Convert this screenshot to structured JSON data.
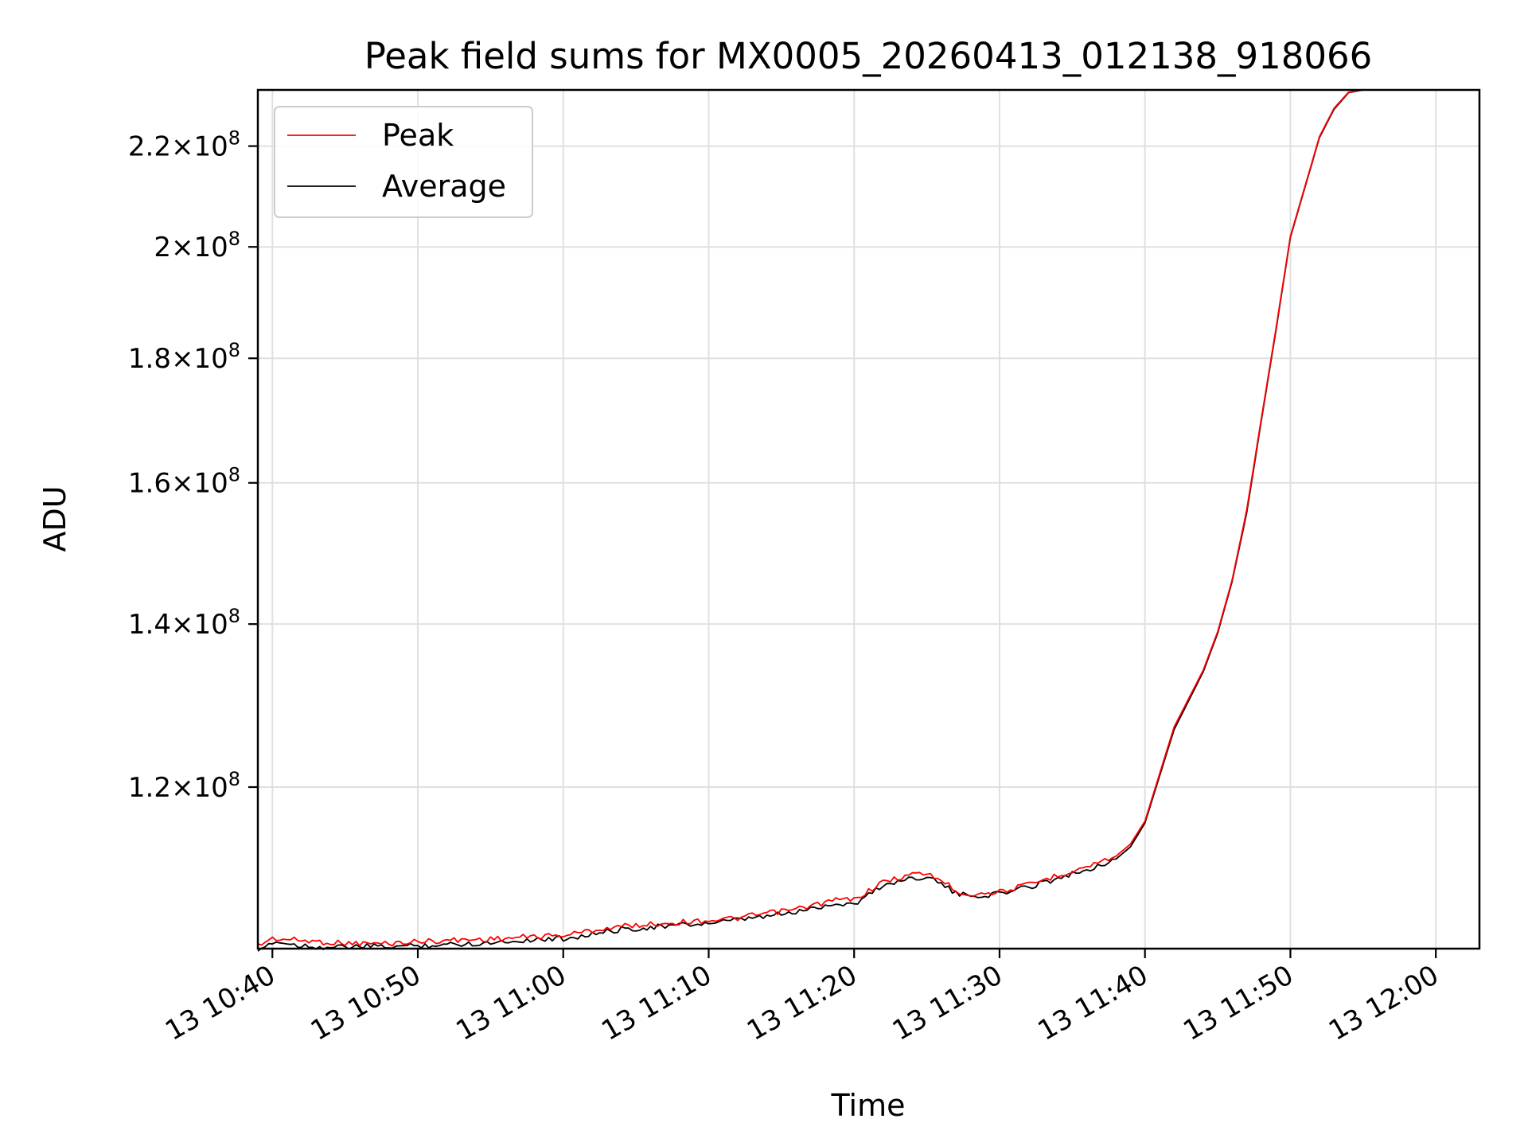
{
  "chart_data": {
    "type": "line",
    "title": "Peak field sums for MX0005_20260413_012138_918066",
    "xlabel": "Time",
    "ylabel": "ADU",
    "x_unit": "minutes of 13 April (day 13)",
    "x_range": [
      "13 10:39",
      "13 12:03"
    ],
    "ylim": [
      103000000,
      232000000
    ],
    "y_scale": "log",
    "grid": true,
    "legend": "top-left",
    "x_ticks": [
      {
        "value": "10:40",
        "label": "13 10:40"
      },
      {
        "value": "10:50",
        "label": "13 10:50"
      },
      {
        "value": "11:00",
        "label": "13 11:00"
      },
      {
        "value": "11:10",
        "label": "13 11:10"
      },
      {
        "value": "11:20",
        "label": "13 11:20"
      },
      {
        "value": "11:30",
        "label": "13 11:30"
      },
      {
        "value": "11:40",
        "label": "13 11:40"
      },
      {
        "value": "11:50",
        "label": "13 11:50"
      },
      {
        "value": "12:00",
        "label": "13 12:00"
      }
    ],
    "y_ticks": [
      {
        "value": 120000000,
        "mantissa": "1.2",
        "base": "10",
        "exp": "8"
      },
      {
        "value": 140000000,
        "mantissa": "1.4",
        "base": "10",
        "exp": "8"
      },
      {
        "value": 160000000,
        "mantissa": "1.6",
        "base": "10",
        "exp": "8"
      },
      {
        "value": 180000000,
        "mantissa": "1.8",
        "base": "10",
        "exp": "8"
      },
      {
        "value": 200000000,
        "mantissa": "2",
        "base": "10",
        "exp": "8"
      },
      {
        "value": 220000000,
        "mantissa": "2.2",
        "base": "10",
        "exp": "8"
      }
    ],
    "x": [
      "10:39",
      "10:40",
      "10:42",
      "10:44",
      "10:46",
      "10:48",
      "10:50",
      "10:52",
      "10:54",
      "10:56",
      "10:58",
      "11:00",
      "11:02",
      "11:04",
      "11:06",
      "11:08",
      "11:10",
      "11:12",
      "11:14",
      "11:16",
      "11:18",
      "11:19",
      "11:20",
      "11:22",
      "11:24",
      "11:25",
      "11:26",
      "11:27",
      "11:28",
      "11:30",
      "11:32",
      "11:34",
      "11:36",
      "11:38",
      "11:39",
      "11:40",
      "11:42",
      "11:44",
      "11:45",
      "11:46",
      "11:47",
      "11:48",
      "11:49",
      "11:50",
      "11:52",
      "11:53",
      "11:54",
      "11:55"
    ],
    "series": [
      {
        "name": "Peak",
        "color": "#ff0000",
        "values": [
          103300000,
          104000000,
          103800000,
          103600000,
          103500000,
          103500000,
          103700000,
          103800000,
          103900000,
          104000000,
          104200000,
          104300000,
          104800000,
          105200000,
          105400000,
          105600000,
          105800000,
          106000000,
          106500000,
          106900000,
          107600000,
          107900000,
          107900000,
          109700000,
          110500000,
          110600000,
          109900000,
          108800000,
          108400000,
          108700000,
          109400000,
          110400000,
          111300000,
          112400000,
          113700000,
          116200000,
          127000000,
          134000000,
          139000000,
          146000000,
          156000000,
          170000000,
          185000000,
          202000000,
          222000000,
          228000000,
          231500000,
          232000000
        ]
      },
      {
        "name": "Average",
        "color": "#000000",
        "values": [
          102500000,
          103700000,
          103300000,
          103100000,
          103200000,
          103200000,
          103300000,
          103400000,
          103500000,
          103700000,
          103900000,
          104000000,
          104400000,
          104900000,
          105100000,
          105300000,
          105500000,
          105800000,
          106200000,
          106600000,
          107300000,
          107500000,
          107400000,
          109400000,
          110100000,
          110300000,
          109500000,
          108500000,
          108200000,
          108500000,
          109200000,
          110100000,
          111000000,
          112100000,
          113400000,
          116000000,
          126700000,
          133800000,
          138800000,
          145800000,
          155600000,
          169700000,
          184700000,
          201800000,
          221800000,
          227800000,
          231400000,
          232000000
        ]
      }
    ]
  }
}
